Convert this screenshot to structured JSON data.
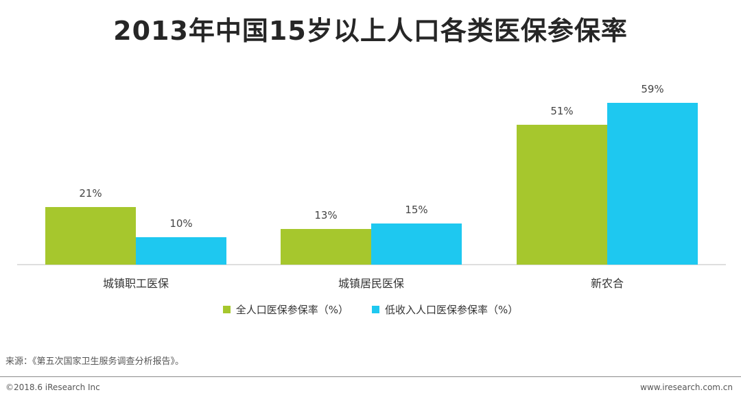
{
  "chart_data": {
    "type": "bar",
    "title": "2013年中国15岁以上人口各类医保参保率",
    "categories": [
      "城镇职工医保",
      "城镇居民医保",
      "新农合"
    ],
    "series": [
      {
        "name": "全人口医保参保率（%）",
        "color": "#a6c72d",
        "values": [
          21,
          13,
          51
        ]
      },
      {
        "name": "低收入人口医保参保率（%）",
        "color": "#1ec8f0",
        "values": [
          10,
          15,
          59
        ]
      }
    ],
    "data_labels": [
      [
        "21%",
        "13%",
        "51%"
      ],
      [
        "10%",
        "15%",
        "59%"
      ]
    ],
    "ylim": [
      0,
      65
    ],
    "grid": false,
    "legend_position": "bottom"
  },
  "source": "来源：《第五次国家卫生服务调查分析报告》。",
  "footer": {
    "copyright": "©2018.6 iResearch Inc",
    "website": "www.iresearch.com.cn"
  }
}
